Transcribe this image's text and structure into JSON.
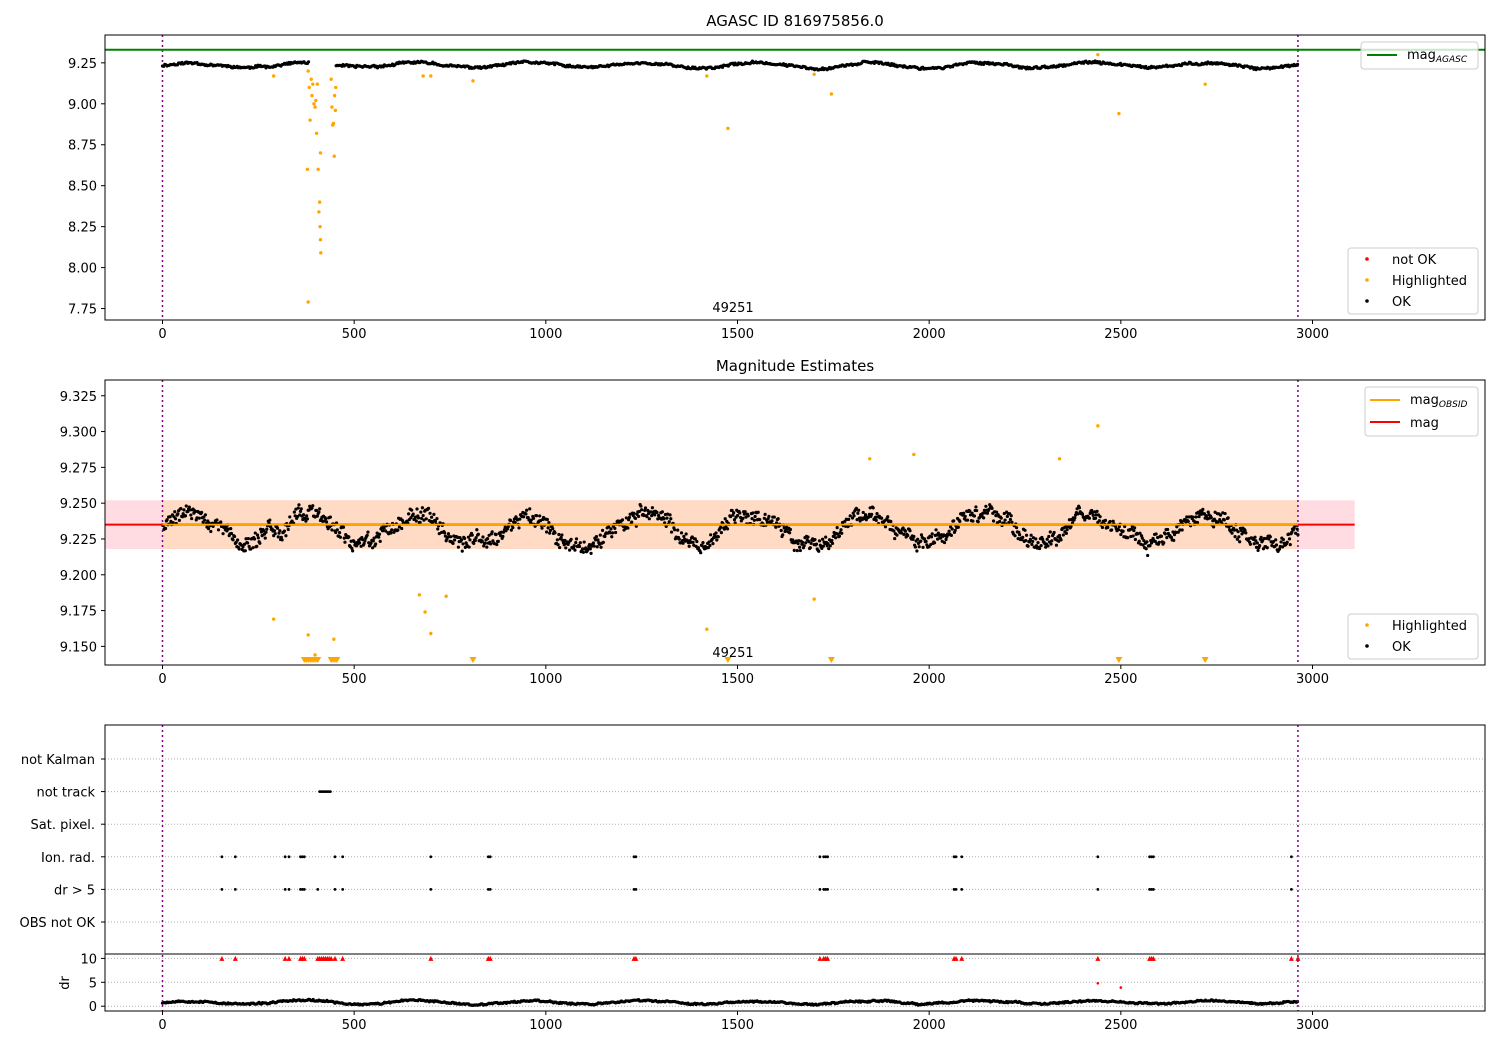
{
  "chart_data": [
    {
      "type": "scatter",
      "title": "AGASC ID 816975856.0",
      "xlim": [
        -150,
        3450
      ],
      "ylim": [
        7.68,
        9.42
      ],
      "xticks": [
        "0",
        "500",
        "1000",
        "1500",
        "2000",
        "2500",
        "3000"
      ],
      "yticks": [
        "7.75",
        "8.00",
        "8.25",
        "8.50",
        "8.75",
        "9.00",
        "9.25"
      ],
      "obsid_label": "49251",
      "obsid_label_x": 1475,
      "obsid_boundaries": [
        0,
        2962
      ],
      "mag_agasc": 9.33,
      "colors": {
        "ok": "#000000",
        "highlighted": "#ffa500",
        "not_ok": "#ff0000",
        "mag_agasc": "#008000",
        "obsid_line": "#800080"
      },
      "legend_lines": [
        {
          "label": "mag",
          "sub": "AGASC",
          "color": "#008000"
        }
      ],
      "legend_markers": [
        {
          "label": "not OK",
          "color": "#ff0000"
        },
        {
          "label": "Highlighted",
          "color": "#ffa500"
        },
        {
          "label": "OK",
          "color": "#000000"
        }
      ],
      "series": [
        {
          "name": "OK",
          "baseline": 9.235,
          "wiggle": 0.025,
          "x_start": 0,
          "x_end": 2962,
          "gaps": [
            [
              382,
              450
            ]
          ]
        },
        {
          "name": "Highlighted",
          "points": [
            [
              290,
              9.17
            ],
            [
              378,
              8.6
            ],
            [
              380,
              9.2
            ],
            [
              383,
              9.1
            ],
            [
              385,
              8.9
            ],
            [
              388,
              9.15
            ],
            [
              390,
              9.05
            ],
            [
              392,
              9.12
            ],
            [
              395,
              9.0
            ],
            [
              398,
              8.98
            ],
            [
              400,
              9.02
            ],
            [
              402,
              8.82
            ],
            [
              404,
              9.12
            ],
            [
              406,
              8.6
            ],
            [
              408,
              8.34
            ],
            [
              410,
              8.4
            ],
            [
              411,
              8.25
            ],
            [
              412,
              8.17
            ],
            [
              413,
              8.09
            ],
            [
              380,
              7.79
            ],
            [
              412,
              8.7
            ],
            [
              440,
              9.15
            ],
            [
              442,
              8.98
            ],
            [
              444,
              8.87
            ],
            [
              446,
              8.88
            ],
            [
              448,
              8.68
            ],
            [
              449,
              9.05
            ],
            [
              451,
              8.96
            ],
            [
              452,
              9.1
            ],
            [
              680,
              9.17
            ],
            [
              700,
              9.17
            ],
            [
              810,
              9.14
            ],
            [
              1420,
              9.17
            ],
            [
              1475,
              8.85
            ],
            [
              1700,
              9.18
            ],
            [
              1745,
              9.06
            ],
            [
              2440,
              9.3
            ],
            [
              2495,
              8.94
            ],
            [
              2720,
              9.12
            ]
          ]
        },
        {
          "name": "not OK",
          "points": []
        }
      ]
    },
    {
      "type": "scatter",
      "title": "Magnitude Estimates",
      "xlim": [
        -150,
        3450
      ],
      "ylim": [
        9.137,
        9.336
      ],
      "xticks": [
        "0",
        "500",
        "1000",
        "1500",
        "2000",
        "2500",
        "3000"
      ],
      "yticks": [
        "9.150",
        "9.175",
        "9.200",
        "9.225",
        "9.250",
        "9.275",
        "9.300",
        "9.325"
      ],
      "obsid_label": "49251",
      "obsid_label_x": 1475,
      "obsid_boundaries": [
        0,
        2962
      ],
      "mag": 9.235,
      "mag_band": [
        9.218,
        9.252
      ],
      "mag_band_x": [
        -150,
        3110
      ],
      "mag_obsid": 9.235,
      "mag_obsid_band": [
        9.218,
        9.252
      ],
      "mag_obsid_x": [
        0,
        2962
      ],
      "colors": {
        "ok": "#000000",
        "highlighted": "#ffa500",
        "mag": "#ff0000",
        "mag_obsid": "#ffa500",
        "mag_band": "#ffc0cb",
        "mag_obsid_band": "#ffdab9",
        "obsid_line": "#800080"
      },
      "legend_lines": [
        {
          "label": "mag",
          "sub": "OBSID",
          "color": "#ffa500"
        },
        {
          "label": "mag",
          "sub": "",
          "color": "#ff0000"
        }
      ],
      "legend_markers": [
        {
          "label": "Highlighted",
          "color": "#ffa500"
        },
        {
          "label": "OK",
          "color": "#000000"
        }
      ],
      "series": [
        {
          "name": "OK",
          "baseline": 9.232,
          "wiggle": 0.018,
          "x_start": 0,
          "x_end": 2962
        },
        {
          "name": "Highlighted",
          "points": [
            [
              290,
              9.169
            ],
            [
              380,
              9.158
            ],
            [
              398,
              9.144
            ],
            [
              447,
              9.155
            ],
            [
              670,
              9.186
            ],
            [
              685,
              9.174
            ],
            [
              700,
              9.159
            ],
            [
              740,
              9.185
            ],
            [
              1420,
              9.162
            ],
            [
              1700,
              9.183
            ],
            [
              1845,
              9.281
            ],
            [
              1960,
              9.284
            ],
            [
              2340,
              9.281
            ],
            [
              2440,
              9.304
            ]
          ]
        },
        {
          "name": "Highlighted (off-scale)",
          "x": [
            370,
            375,
            380,
            385,
            390,
            395,
            400,
            405,
            440,
            445,
            450,
            455,
            810,
            1475,
            1745,
            2495,
            2720
          ]
        }
      ]
    },
    {
      "type": "scatter",
      "title": "",
      "xlim": [
        -150,
        3450
      ],
      "xticks": [
        "0",
        "500",
        "1000",
        "1500",
        "2000",
        "2500",
        "3000"
      ],
      "flag_rows": [
        "not Kalman",
        "not track",
        "Sat. pixel.",
        "Ion. rad.",
        "dr > 5",
        "OBS not OK"
      ],
      "flag_points": {
        "not Kalman": [],
        "not track": [
          410,
          414,
          418,
          422,
          426,
          430,
          434,
          438
        ],
        "Sat. pixel.": [],
        "Ion. rad.": [
          155,
          190,
          320,
          330,
          360,
          365,
          370,
          450,
          470,
          700,
          850,
          855,
          1230,
          1235,
          1715,
          1725,
          1730,
          1735,
          2065,
          2070,
          2085,
          2440,
          2575,
          2580,
          2585,
          2945
        ],
        "dr > 5": [
          155,
          190,
          320,
          330,
          360,
          365,
          370,
          405,
          450,
          470,
          700,
          850,
          855,
          1230,
          1235,
          1715,
          1725,
          1730,
          1735,
          2065,
          2070,
          2085,
          2440,
          2575,
          2580,
          2585,
          2945
        ],
        "OBS not OK": []
      },
      "dr_ylabel": "dr",
      "dr_yticks": [
        "0",
        "5",
        "10"
      ],
      "dr_ylim": [
        -1,
        10.5
      ],
      "dr_clipped_x": [
        155,
        190,
        320,
        330,
        360,
        365,
        370,
        405,
        410,
        415,
        420,
        425,
        430,
        435,
        440,
        450,
        470,
        700,
        850,
        855,
        1230,
        1235,
        1715,
        1725,
        1730,
        1735,
        2065,
        2070,
        2085,
        2440,
        2575,
        2580,
        2585,
        2945,
        2962
      ],
      "dr_outliers": [
        [
          2440,
          4.8
        ],
        [
          2500,
          3.9
        ]
      ],
      "dr_ok": {
        "baseline": 0.8,
        "wiggle": 0.6,
        "x_start": 0,
        "x_end": 2962
      },
      "colors": {
        "ok": "#000000",
        "not_ok": "#ff0000",
        "grid": "#b0b0b0",
        "obsid_line": "#800080"
      }
    }
  ]
}
